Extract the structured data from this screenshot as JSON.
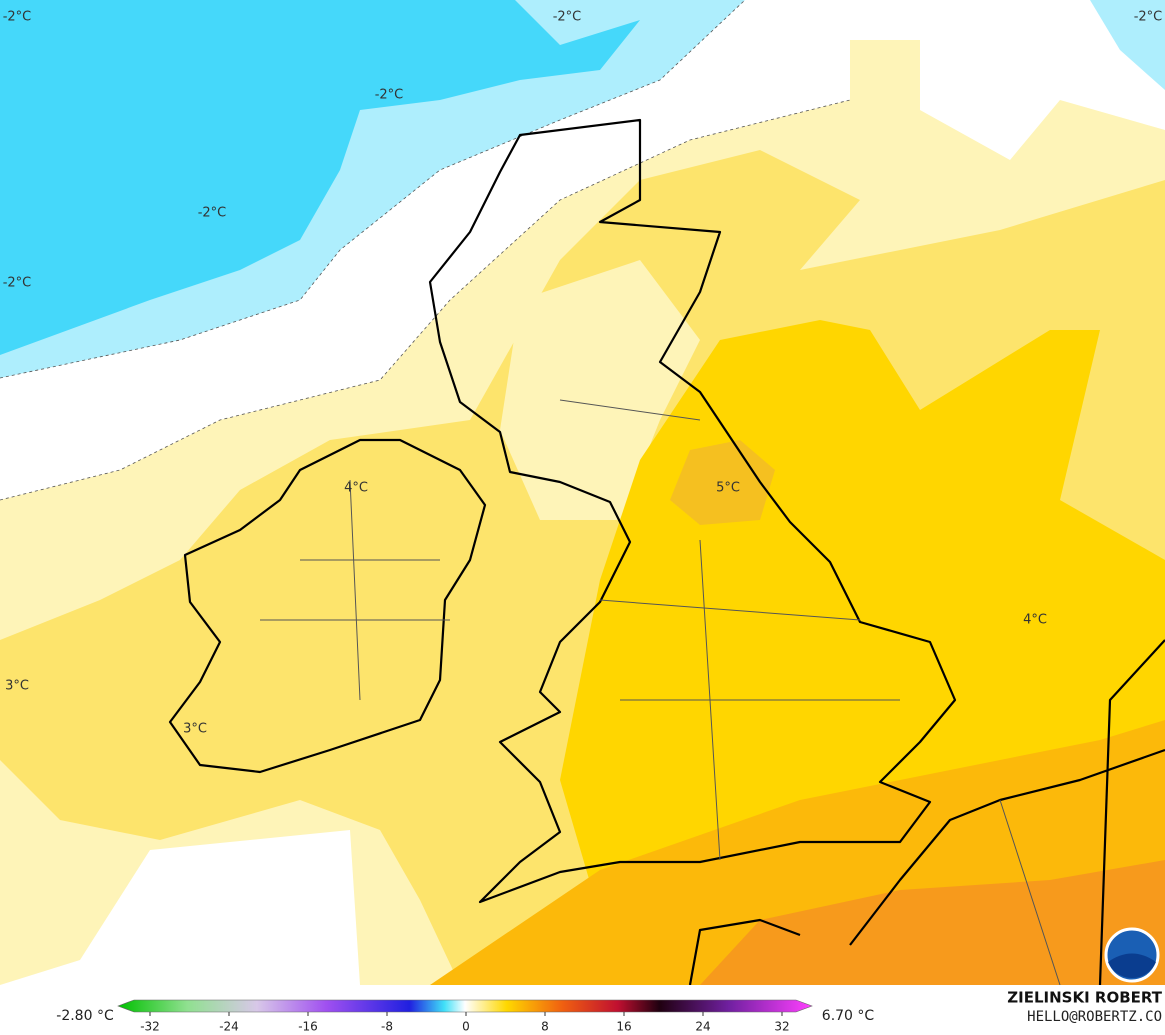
{
  "map": {
    "contour_labels": [
      "-2°C",
      "-2°C",
      "-2°C",
      "-2°C",
      "-2°C",
      "-2°C",
      "4°C",
      "5°C",
      "4°C",
      "3°C",
      "3°C"
    ]
  },
  "legend": {
    "min_label": "-2.80 °C",
    "max_label": "6.70 °C",
    "range": [
      -32,
      32
    ],
    "ticks": [
      -32,
      -24,
      -16,
      -8,
      0,
      8,
      16,
      24,
      32
    ]
  },
  "credit": {
    "name": "ZIELINSKI ROBERT",
    "email": "HELLO@ROBERTZ.CO"
  }
}
